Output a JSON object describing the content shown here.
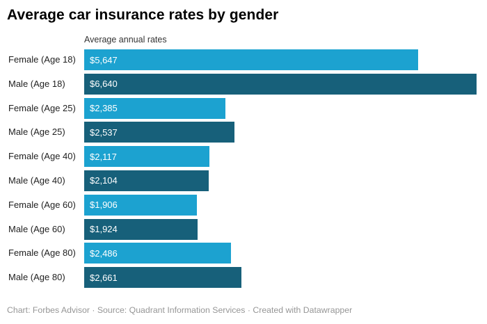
{
  "header": {
    "title": "Average car insurance rates by gender"
  },
  "chart_data": {
    "type": "bar",
    "orientation": "horizontal",
    "title": "Average car insurance rates by gender",
    "axis_label": "Average annual rates",
    "categories": [
      "Female (Age 18)",
      "Male (Age 18)",
      "Female (Age 25)",
      "Male (Age 25)",
      "Female (Age 40)",
      "Male (Age 40)",
      "Female (Age 60)",
      "Male (Age 60)",
      "Female (Age 80)",
      "Male (Age 80)"
    ],
    "values": [
      5647,
      6640,
      2385,
      2537,
      2117,
      2104,
      1906,
      1924,
      2486,
      2661
    ],
    "value_labels": [
      "$5,647",
      "$6,640",
      "$2,385",
      "$2,537",
      "$2,117",
      "$2,104",
      "$1,906",
      "$1,924",
      "$2,486",
      "$2,661"
    ],
    "xlim": [
      0,
      6640
    ],
    "grid": false,
    "legend": "none",
    "value_label_position": "inside-start",
    "colors": {
      "female": "#1ca2d0",
      "male": "#17607a"
    }
  },
  "footer": {
    "text": "Chart: Forbes Advisor · Source: Quadrant Information Services · Created with Datawrapper"
  }
}
